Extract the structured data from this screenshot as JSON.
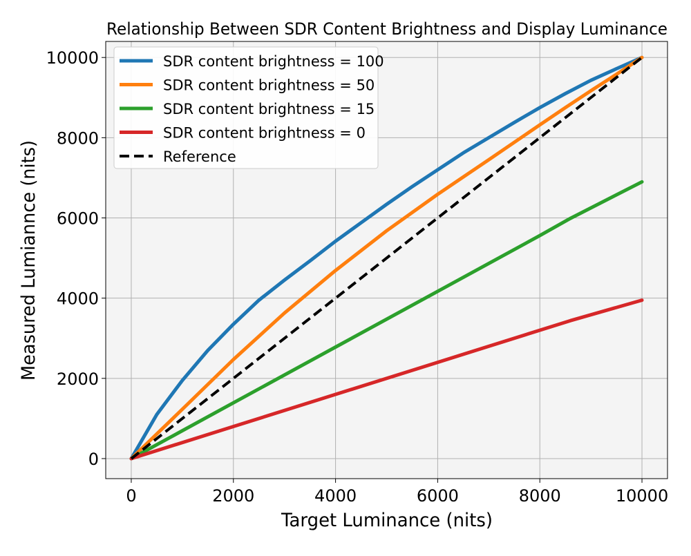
{
  "chart_data": {
    "type": "line",
    "title": "Relationship Between SDR Content Brightness and Display Luminance",
    "xlabel": "Target Luminance (nits)",
    "ylabel": "Measured Lumiannce (nits)",
    "xlim": [
      -500,
      10500
    ],
    "ylim": [
      -500,
      10400
    ],
    "xticks": [
      0,
      2000,
      4000,
      6000,
      8000,
      10000
    ],
    "yticks": [
      0,
      2000,
      4000,
      6000,
      8000,
      10000
    ],
    "grid": true,
    "legend_position": "upper-left",
    "background_color": "#f4f4f4",
    "series": [
      {
        "name": "SDR content brightness = 100",
        "color": "#1f77b4",
        "style": "solid",
        "x": [
          0,
          500,
          1000,
          1500,
          2000,
          2500,
          3000,
          3500,
          4000,
          4500,
          5000,
          5500,
          6000,
          6500,
          7000,
          7500,
          8000,
          8500,
          9000,
          9500,
          10000
        ],
        "y": [
          0,
          1100,
          1950,
          2700,
          3350,
          3950,
          4450,
          4930,
          5420,
          5880,
          6340,
          6780,
          7200,
          7620,
          8000,
          8380,
          8750,
          9100,
          9430,
          9720,
          10000
        ]
      },
      {
        "name": "SDR content brightness = 50",
        "color": "#ff7f0e",
        "style": "solid",
        "x": [
          0,
          1000,
          2000,
          3000,
          4000,
          5000,
          6000,
          7000,
          8000,
          8500,
          9000,
          9500,
          10000
        ],
        "y": [
          0,
          1230,
          2470,
          3630,
          4690,
          5680,
          6590,
          7450,
          8320,
          8750,
          9170,
          9580,
          10000
        ]
      },
      {
        "name": "SDR content brightness = 15",
        "color": "#2ca02c",
        "style": "solid",
        "x": [
          0,
          2000,
          4000,
          6000,
          8000,
          8600,
          10000
        ],
        "y": [
          0,
          1390,
          2780,
          4170,
          5560,
          5990,
          6900
        ]
      },
      {
        "name": "SDR content brightness = 0",
        "color": "#d62728",
        "style": "solid",
        "x": [
          0,
          2000,
          4000,
          6000,
          8000,
          8600,
          10000
        ],
        "y": [
          0,
          800,
          1600,
          2400,
          3200,
          3440,
          3950
        ]
      },
      {
        "name": "Reference",
        "color": "#000000",
        "style": "dashed",
        "x": [
          0,
          10000
        ],
        "y": [
          0,
          10000
        ]
      }
    ]
  }
}
